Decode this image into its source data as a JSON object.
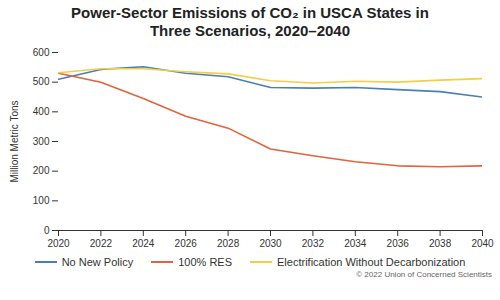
{
  "chart_data": {
    "type": "line",
    "title": "Power-Sector Emissions of CO₂ in USCA States in Three Scenarios, 2020–2040",
    "y_label": "Million Metric Tons",
    "source": "© 2022 Union of Concerned Scientists",
    "x": [
      2020,
      2022,
      2024,
      2026,
      2028,
      2030,
      2032,
      2034,
      2036,
      2038,
      2040
    ],
    "series": [
      {
        "name": "No New Policy",
        "color": "#4a7fb5",
        "values": [
          510,
          543,
          552,
          530,
          518,
          482,
          480,
          482,
          475,
          468,
          450
        ]
      },
      {
        "name": "100% RES",
        "color": "#e0643c",
        "values": [
          530,
          500,
          445,
          385,
          345,
          275,
          252,
          232,
          218,
          215,
          218
        ]
      },
      {
        "name": "Electrification Without Decarbonization",
        "color": "#f2cf45",
        "values": [
          532,
          545,
          545,
          535,
          528,
          505,
          497,
          503,
          500,
          507,
          512
        ]
      }
    ],
    "xlim": [
      2020,
      2040
    ],
    "xticks": [
      2020,
      2022,
      2024,
      2026,
      2028,
      2030,
      2032,
      2034,
      2036,
      2038,
      2040
    ],
    "ylim": [
      0,
      600
    ],
    "yticks": [
      0,
      100,
      200,
      300,
      400,
      500,
      600
    ],
    "grid": false,
    "legend": "bottom"
  }
}
